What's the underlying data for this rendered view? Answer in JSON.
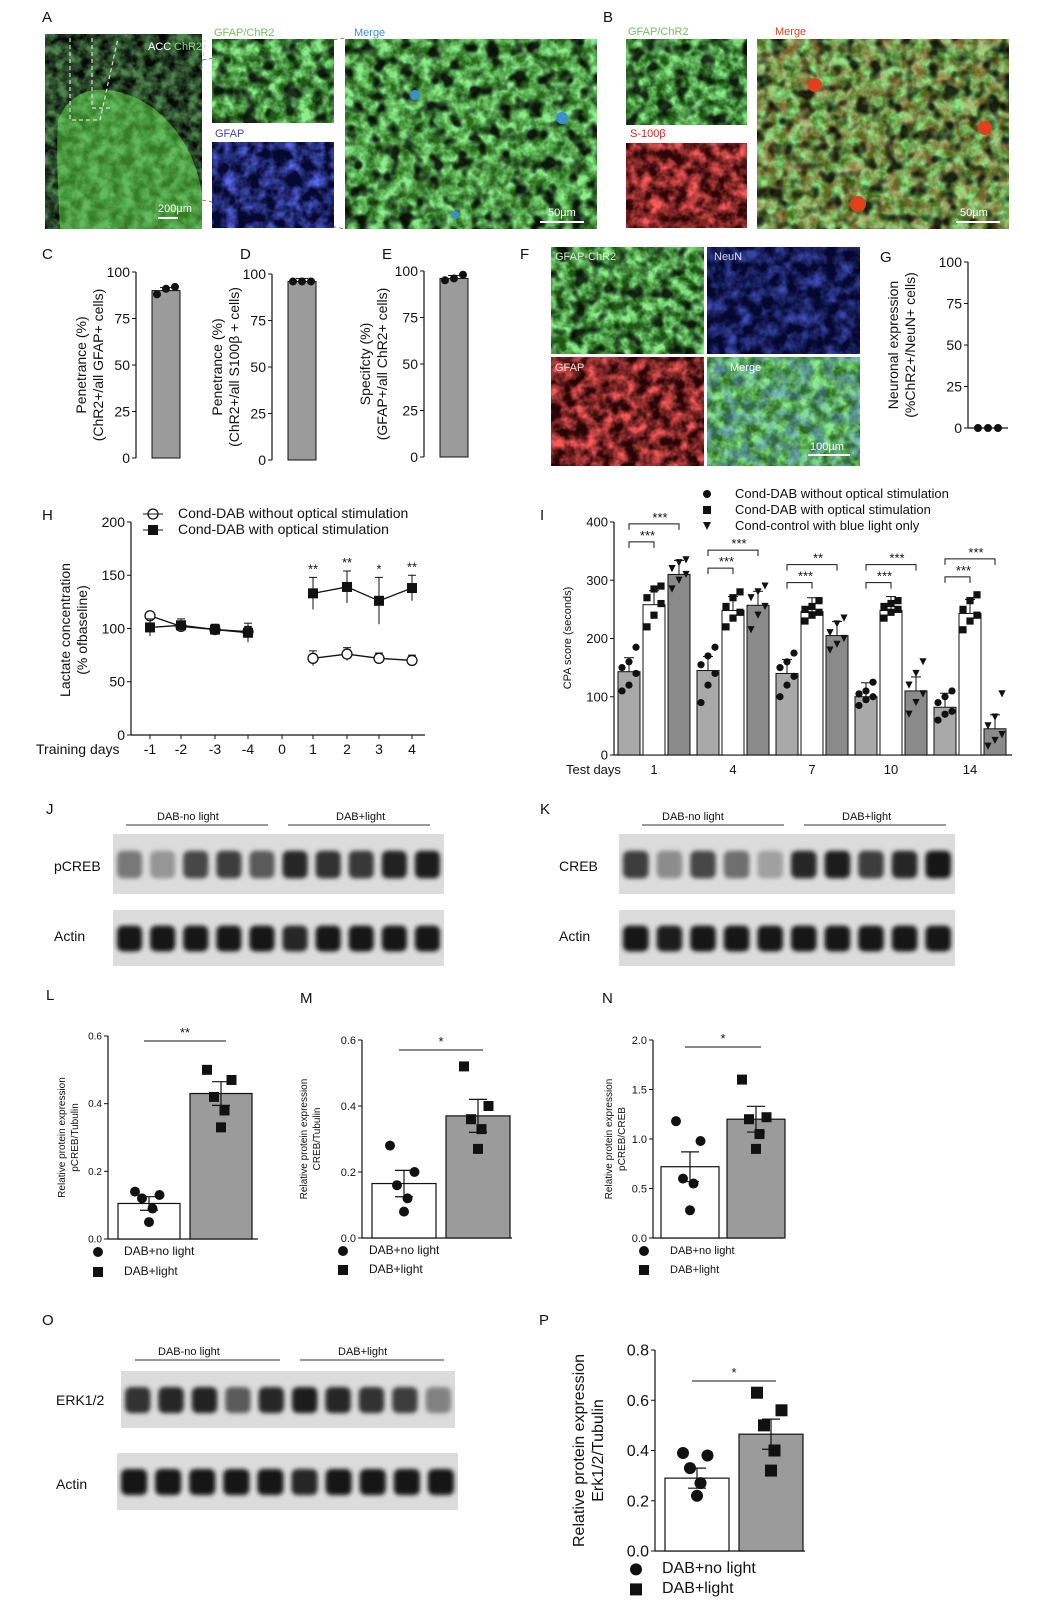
{
  "panel_letters": [
    "A",
    "B",
    "C",
    "D",
    "E",
    "F",
    "G",
    "H",
    "I",
    "J",
    "K",
    "L",
    "M",
    "N",
    "O",
    "P"
  ],
  "micro": {
    "A_overview": "ACC",
    "A_overview_chr2": "ChR2",
    "A_gfap_chr2": "GFAP/ChR2",
    "A_gfap": "GFAP",
    "A_merge": "Merge",
    "A_scale_overview": "200µm",
    "A_scale_merge": "50µm",
    "B_gfap_chr2": "GFAP/ChR2",
    "B_s100": "S-100β",
    "B_merge": "Merge",
    "B_scale": "50µm",
    "F_gfap_chr2": "GFAP-ChR2",
    "F_neun": "NeuN",
    "F_gfap": "GFAP",
    "F_merge": "Merge",
    "F_scale": "100µm"
  },
  "blots": {
    "J": {
      "group1": "DAB-no light",
      "group2": "DAB+light",
      "row1": "pCREB",
      "row2": "Actin"
    },
    "K": {
      "group1": "DAB-no light",
      "group2": "DAB+light",
      "row1": "CREB",
      "row2": "Actin"
    },
    "O": {
      "group1": "DAB-no light",
      "group2": "DAB+light",
      "row1": "ERK1/2",
      "row2": "Actin"
    }
  },
  "chart_data": [
    {
      "panel": "C",
      "type": "bar",
      "ylabel": "Penetrance (%)",
      "ylabel2": "(ChR2+/all GFAP+ cells)",
      "ylim": [
        0,
        100
      ],
      "yticks": [
        0,
        25,
        50,
        75,
        100
      ],
      "values": [
        90
      ],
      "points": [
        [
          88,
          91,
          92
        ]
      ]
    },
    {
      "panel": "D",
      "type": "bar",
      "ylabel": "Penetrance (%)",
      "ylabel2": "(ChR2+/all S100β + cells)",
      "ylim": [
        0,
        100
      ],
      "yticks": [
        0,
        25,
        50,
        75,
        100
      ],
      "values": [
        96
      ],
      "points": [
        [
          96,
          96,
          96
        ]
      ]
    },
    {
      "panel": "E",
      "type": "bar",
      "ylabel": "Specifcty (%)",
      "ylabel2": "(GFAP+/all ChR2+ cells)",
      "ylim": [
        0,
        100
      ],
      "yticks": [
        0,
        25,
        50,
        75,
        100
      ],
      "values": [
        96
      ],
      "points": [
        [
          95,
          96,
          98
        ]
      ]
    },
    {
      "panel": "G",
      "type": "scatter",
      "ylabel": "Neuronal expression",
      "ylabel2": "(%ChR2+/NeuN+ cells)",
      "ylim": [
        0,
        100
      ],
      "yticks": [
        0,
        25,
        50,
        75,
        100
      ],
      "values": [
        0
      ],
      "points": [
        [
          0,
          0,
          0
        ]
      ]
    },
    {
      "panel": "H",
      "type": "line",
      "ylabel": "Lactate concentration",
      "ylabel2": "(% ofbaseline)",
      "xlabel": "Training days",
      "categories": [
        "-1",
        "-2",
        "-3",
        "-4",
        "0",
        "1",
        "2",
        "3",
        "4"
      ],
      "ylim": [
        0,
        200
      ],
      "yticks": [
        0,
        50,
        100,
        150,
        200
      ],
      "series": [
        {
          "name": "Cond-DAB without optical stimulation",
          "marker": "circle-open",
          "values": [
            112,
            102,
            99,
            97,
            null,
            72,
            76,
            72,
            70
          ],
          "err": [
            3,
            4,
            4,
            5,
            null,
            7,
            6,
            5,
            5
          ]
        },
        {
          "name": "Cond-DAB with optical stimulation",
          "marker": "square",
          "values": [
            101,
            103,
            99,
            96,
            null,
            133,
            139,
            126,
            138
          ],
          "err": [
            8,
            6,
            5,
            9,
            null,
            15,
            15,
            22,
            12
          ]
        }
      ],
      "significance": [
        {
          "x": "1",
          "text": "**"
        },
        {
          "x": "2",
          "text": "**"
        },
        {
          "x": "3",
          "text": "*"
        },
        {
          "x": "4",
          "text": "**"
        }
      ]
    },
    {
      "panel": "I",
      "type": "bar",
      "ylabel": "CPA score (seconds)",
      "xlabel": "Test days",
      "categories": [
        "1",
        "4",
        "7",
        "10",
        "14"
      ],
      "ylim": [
        0,
        400
      ],
      "yticks": [
        0,
        100,
        200,
        300,
        400
      ],
      "series": [
        {
          "name": "Cond-DAB without optical stimulation",
          "marker": "circle",
          "values": [
            143,
            145,
            140,
            100,
            82
          ],
          "points": [
            [
              110,
              120,
              140,
              150,
              160,
              185
            ],
            [
              90,
              120,
              140,
              155,
              170,
              185
            ],
            [
              100,
              120,
              135,
              150,
              160,
              175
            ],
            [
              85,
              95,
              100,
              105,
              110,
              125
            ],
            [
              60,
              70,
              75,
              90,
              100,
              110
            ]
          ]
        },
        {
          "name": "Cond-DAB with optical stimulation",
          "marker": "square",
          "values": [
            258,
            248,
            246,
            248,
            243
          ],
          "points": [
            [
              220,
              240,
              260,
              270,
              285,
              290
            ],
            [
              220,
              235,
              245,
              255,
              270,
              280
            ],
            [
              230,
              240,
              245,
              250,
              255,
              265
            ],
            [
              235,
              245,
              250,
              255,
              260,
              265
            ],
            [
              215,
              230,
              240,
              250,
              265,
              275
            ]
          ]
        },
        {
          "name": "Cond-control with blue light only",
          "marker": "triangle-down",
          "values": [
            310,
            257,
            205,
            110,
            45
          ],
          "points": [
            [
              285,
              300,
              310,
              320,
              330,
              335
            ],
            [
              215,
              240,
              255,
              270,
              280,
              290
            ],
            [
              180,
              190,
              200,
              210,
              225,
              235
            ],
            [
              70,
              90,
              105,
              120,
              140,
              160
            ],
            [
              15,
              25,
              35,
              50,
              65,
              105
            ]
          ]
        }
      ],
      "significance": [
        {
          "text": "***"
        },
        {
          "text": "***"
        },
        {
          "text": "***"
        },
        {
          "text": "***"
        },
        {
          "text": "***"
        },
        {
          "text": "**"
        },
        {
          "text": "***"
        },
        {
          "text": "***"
        },
        {
          "text": "***"
        },
        {
          "text": "***"
        }
      ]
    },
    {
      "panel": "L",
      "type": "bar",
      "ylabel": "Relative protein expression",
      "ylabel2": "pCREB/Tubulin",
      "ylim": [
        0,
        0.6
      ],
      "yticks": [
        "0.0",
        "0.2",
        "0.4",
        "0.6"
      ],
      "categories": [
        "DAB+no light",
        "DAB+light"
      ],
      "values": [
        0.105,
        0.43
      ],
      "err": [
        0.02,
        0.035
      ],
      "points": [
        [
          0.05,
          0.09,
          0.12,
          0.13,
          0.14
        ],
        [
          0.33,
          0.38,
          0.42,
          0.47,
          0.5
        ]
      ],
      "significance": "**"
    },
    {
      "panel": "M",
      "type": "bar",
      "ylabel": "Relative protein expression",
      "ylabel2": "CREB/Tubulin",
      "ylim": [
        0,
        0.6
      ],
      "yticks": [
        "0.0",
        "0.2",
        "0.4",
        "0.6"
      ],
      "categories": [
        "DAB+no light",
        "DAB+light"
      ],
      "values": [
        0.165,
        0.37
      ],
      "err": [
        0.04,
        0.05
      ],
      "points": [
        [
          0.08,
          0.12,
          0.16,
          0.2,
          0.28
        ],
        [
          0.27,
          0.33,
          0.36,
          0.4,
          0.52
        ]
      ],
      "significance": "*"
    },
    {
      "panel": "N",
      "type": "bar",
      "ylabel": "Relative protein expression",
      "ylabel2": "pCREB/CREB",
      "ylim": [
        0,
        2
      ],
      "yticks": [
        "0.0",
        "0.5",
        "1.0",
        "1.5",
        "2.0"
      ],
      "categories": [
        "DAB+no light",
        "DAB+light"
      ],
      "values": [
        0.72,
        1.2
      ],
      "err": [
        0.15,
        0.13
      ],
      "points": [
        [
          0.28,
          0.55,
          0.6,
          0.98,
          1.18
        ],
        [
          0.9,
          1.05,
          1.2,
          1.22,
          1.6
        ]
      ],
      "significance": "*"
    },
    {
      "panel": "P",
      "type": "bar",
      "ylabel": "Relative protein expression",
      "ylabel2": "Erk1/2/Tubulin",
      "ylim": [
        0,
        0.8
      ],
      "yticks": [
        "0.0",
        "0.2",
        "0.4",
        "0.6",
        "0.8"
      ],
      "categories": [
        "DAB+no light",
        "DAB+light"
      ],
      "values": [
        0.29,
        0.465
      ],
      "err": [
        0.04,
        0.06
      ],
      "points": [
        [
          0.22,
          0.27,
          0.33,
          0.38,
          0.39
        ],
        [
          0.32,
          0.4,
          0.5,
          0.56,
          0.63
        ]
      ],
      "significance": "*"
    }
  ]
}
